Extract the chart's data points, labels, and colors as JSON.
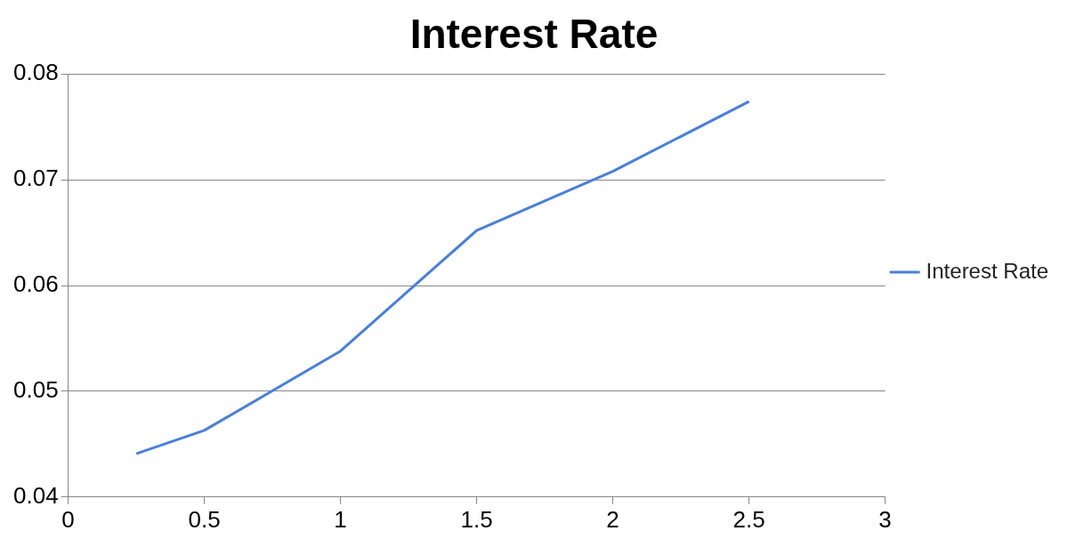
{
  "chart_data": {
    "type": "line",
    "title": "Interest Rate",
    "x": [
      0.25,
      0.5,
      1,
      1.5,
      2,
      2.5
    ],
    "series": [
      {
        "name": "Interest Rate",
        "color": "#4a7fd9",
        "values": [
          0.0441,
          0.0463,
          0.0538,
          0.0652,
          0.0708,
          0.0774
        ]
      }
    ],
    "xlim": [
      0,
      3
    ],
    "xticks": [
      0,
      0.5,
      1,
      1.5,
      2,
      2.5,
      3
    ],
    "ylim": [
      0.04,
      0.08
    ],
    "yticks": [
      0.04,
      0.05,
      0.06,
      0.07,
      0.08
    ],
    "grid": "y",
    "legend": "right",
    "marker": "none",
    "line_style": "solid"
  }
}
